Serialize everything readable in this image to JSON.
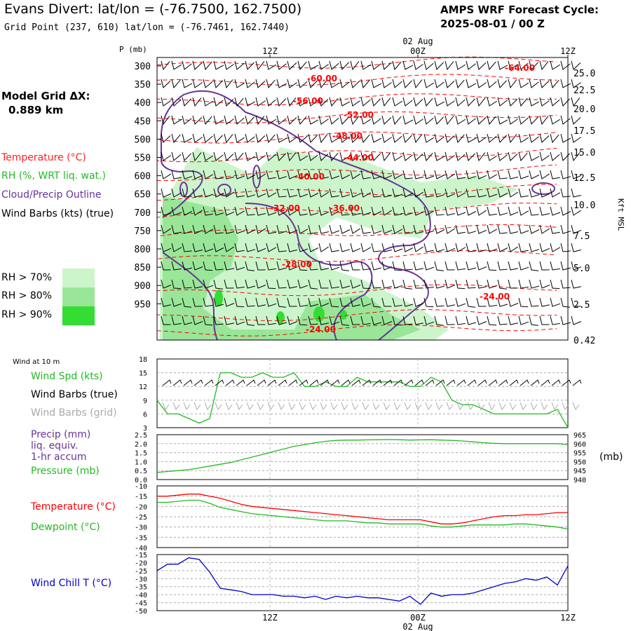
{
  "header": {
    "title": "Evans Divert:  lat/lon = (-76.7500, 162.7500)",
    "subtitle": "Grid Point (237, 610) lat/lon = (-76.7461, 162.7440)",
    "cycle_line1": "AMPS WRF Forecast Cycle:",
    "cycle_line2": "2025-08-01 / 00  Z"
  },
  "grid": {
    "line1": "Model Grid ΔX:",
    "line2": "0.889 km"
  },
  "legend": {
    "temperature": "Temperature (°C)",
    "rh": "RH (%, WRT liq. wat.)",
    "cloud": "Cloud/Precip Outline",
    "wind": "Wind Barbs (kts) (true)",
    "rh_levels": [
      "RH > 70%",
      "RH > 80%",
      "RH > 90%"
    ]
  },
  "colors": {
    "temperature": "#ff0000",
    "rh": "#22bb22",
    "cloud": "#663399",
    "rh70": "#ccf5cc",
    "rh80": "#99e699",
    "rh90": "#33dd33",
    "wind": "#000000",
    "windchill": "#0000cc",
    "grid_barb": "#aaaaaa"
  },
  "time_axis": {
    "top_ticks": [
      "12Z",
      "00Z",
      "12Z"
    ],
    "date_label": "02 Aug",
    "bottom_ticks": [
      "12Z",
      "00Z",
      "12Z"
    ],
    "bottom_date": "02 Aug"
  },
  "chart_data": [
    {
      "type": "line",
      "name": "cross-section",
      "ylabel": "P (mb)",
      "ylabel_right": "Kft MSL",
      "pressure_ticks": [
        "300",
        "350",
        "400",
        "450",
        "500",
        "550",
        "600",
        "650",
        "700",
        "750",
        "800",
        "850",
        "900",
        "950"
      ],
      "kft_ticks": [
        "25.0",
        "22.5",
        "20.0",
        "17.5",
        "15.0",
        "12.5",
        "10.0",
        "7.5",
        "5.0",
        "2.5",
        "0.42"
      ],
      "temp_contour_labels": [
        "-64.00",
        "-60.00",
        "-56.00",
        "-52.00",
        "-48.00",
        "-44.00",
        "-40.00",
        "-32.00",
        "-36.00",
        "-28.00",
        "-24.00",
        "-24.00"
      ]
    },
    {
      "type": "line",
      "name": "surface-wind",
      "title": "Wind at 10 m",
      "labels": [
        "Wind Spd (kts)",
        "Wind Barbs (true)",
        "Wind Barbs (grid)"
      ],
      "y_ticks": [
        "18",
        "15",
        "12",
        "9",
        "6",
        "3"
      ],
      "ylim": [
        3,
        18
      ],
      "wind_speed": [
        9,
        6,
        6,
        5,
        4,
        5,
        15,
        15,
        14,
        14,
        15,
        14,
        14,
        15,
        12,
        12,
        13,
        12,
        12,
        14,
        13,
        13,
        13,
        13,
        12,
        12,
        14,
        13,
        9,
        8,
        8,
        7,
        6,
        6,
        6,
        6,
        6,
        6,
        7,
        3
      ]
    },
    {
      "type": "line",
      "name": "precip-pressure",
      "labels": [
        "Precip (mm)",
        "liq. equiv.",
        "1-hr accum",
        "Pressure (mb)"
      ],
      "y_ticks": [
        "2.5",
        "2.0",
        "1.5",
        "1.0",
        "0.5",
        "0.0"
      ],
      "ylim": [
        0,
        2.5
      ],
      "right_ticks": [
        "965",
        "960",
        "955",
        "950",
        "945",
        "940"
      ],
      "right_unit": "(mb)",
      "pressure": [
        944,
        944.5,
        945,
        945.5,
        946.5,
        947.5,
        948.5,
        949.5,
        951,
        952.5,
        954,
        955.5,
        957,
        958.5,
        959.5,
        960.5,
        961.3,
        961.8,
        962,
        962,
        962.1,
        962.2,
        962.3,
        962.2,
        962,
        962.1,
        962.2,
        962,
        961.8,
        961.5,
        961,
        960.5,
        960.2,
        960,
        960,
        960,
        960,
        960,
        960,
        959.5
      ]
    },
    {
      "type": "line",
      "name": "temp-dewpoint",
      "labels": [
        "Temperature (°C)",
        "Dewpoint (°C)"
      ],
      "y_ticks": [
        "-15",
        "-20",
        "-25",
        "-30",
        "-35",
        "-40"
      ],
      "ylim": [
        -40,
        -10
      ],
      "temperature": [
        -15,
        -15,
        -14.5,
        -14,
        -14,
        -15,
        -16,
        -17.5,
        -19,
        -20,
        -20.5,
        -21,
        -21.5,
        -22,
        -22.5,
        -23,
        -23.5,
        -24,
        -24.5,
        -25,
        -25.5,
        -26,
        -26.5,
        -26.5,
        -26.5,
        -26.5,
        -27.5,
        -28.5,
        -28.5,
        -28,
        -27,
        -26,
        -25,
        -24.5,
        -24.5,
        -24,
        -24,
        -23.5,
        -23,
        -23
      ],
      "dewpoint": [
        -18,
        -18,
        -17.5,
        -17,
        -17,
        -18.5,
        -20.5,
        -21.5,
        -22.5,
        -23.5,
        -24,
        -24.5,
        -25,
        -25.5,
        -26,
        -26.5,
        -27,
        -27,
        -27,
        -27.5,
        -28,
        -28,
        -28.5,
        -28.5,
        -28.5,
        -28.5,
        -29.5,
        -30,
        -30,
        -29.5,
        -29,
        -29,
        -29,
        -29,
        -28.5,
        -28.5,
        -29,
        -29.5,
        -30,
        -31
      ]
    },
    {
      "type": "line",
      "name": "wind-chill",
      "labels": [
        "Wind Chill T (°C)"
      ],
      "y_ticks": [
        "-15",
        "-20",
        "-25",
        "-30",
        "-35",
        "-40",
        "-45",
        "-50"
      ],
      "ylim": [
        -50,
        -15
      ],
      "wind_chill": [
        -25,
        -21,
        -21,
        -17,
        -18,
        -26,
        -36,
        -37,
        -38,
        -40,
        -40,
        -40,
        -41,
        -41,
        -42,
        -41,
        -43,
        -41,
        -42,
        -41,
        -42,
        -42,
        -43,
        -44,
        -41,
        -46,
        -39,
        -41,
        -40,
        -40,
        -39,
        -37,
        -35,
        -33,
        -32,
        -30,
        -31,
        -29,
        -34,
        -22
      ]
    }
  ]
}
